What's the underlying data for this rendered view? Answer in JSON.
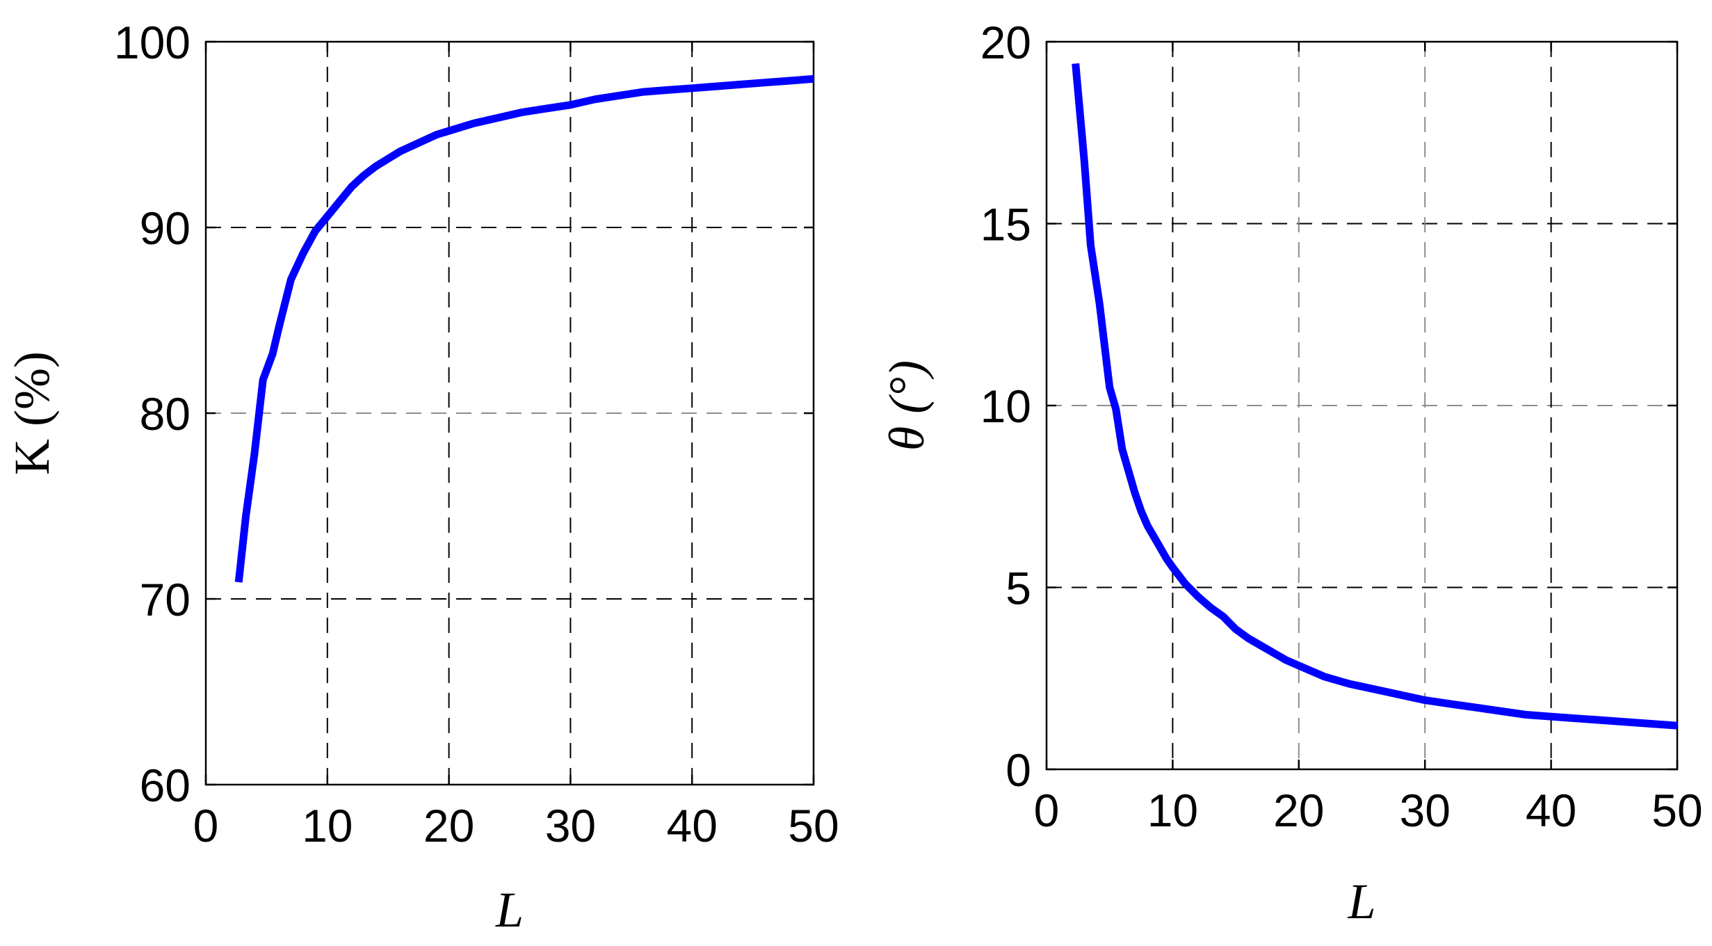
{
  "colors": {
    "series": "#0000ff",
    "axis": "#000000",
    "grid_dark": "#000000",
    "grid_light": "#8c8c8c",
    "background": "#ffffff"
  },
  "chart_data": [
    {
      "type": "line",
      "title": "",
      "xlabel": "L",
      "ylabel": "K (%)",
      "xlim": [
        0,
        50
      ],
      "ylim": [
        60,
        100
      ],
      "xticks": [
        0,
        10,
        20,
        30,
        40,
        50
      ],
      "yticks": [
        60,
        70,
        80,
        90,
        100
      ],
      "xtick_labels": [
        "0",
        "10",
        "20",
        "30",
        "40",
        "50"
      ],
      "ytick_labels": [
        "60",
        "70",
        "80",
        "90",
        "100"
      ],
      "grid": true,
      "series": [
        {
          "x": [
            2.7,
            3.3,
            4.0,
            4.7,
            5.5,
            6.0,
            7.0,
            8.0,
            9.0,
            10.0,
            11.0,
            12.0,
            13.0,
            14.0,
            15.0,
            16.0,
            17.0,
            18.0,
            19.0,
            20.0,
            22.0,
            24.0,
            26.0,
            28.0,
            30.0,
            32.0,
            34.0,
            36.0,
            38.0,
            40.0,
            42.0,
            44.0,
            46.0,
            48.0,
            50.0
          ],
          "values": [
            70.9,
            74.5,
            77.8,
            81.8,
            83.2,
            84.6,
            87.2,
            88.6,
            89.8,
            90.6,
            91.4,
            92.2,
            92.8,
            93.3,
            93.7,
            94.1,
            94.4,
            94.7,
            95.0,
            95.2,
            95.6,
            95.9,
            96.2,
            96.4,
            96.6,
            96.9,
            97.1,
            97.3,
            97.4,
            97.5,
            97.6,
            97.7,
            97.8,
            97.9,
            98.0
          ]
        }
      ]
    },
    {
      "type": "line",
      "title": "",
      "xlabel": "L",
      "ylabel": "θ (°)",
      "xlim": [
        0,
        50
      ],
      "ylim": [
        0,
        20
      ],
      "xticks": [
        0,
        10,
        20,
        30,
        40,
        50
      ],
      "yticks": [
        0,
        5,
        10,
        15,
        20
      ],
      "xtick_labels": [
        "0",
        "10",
        "20",
        "30",
        "40",
        "50"
      ],
      "ytick_labels": [
        "0",
        "5",
        "10",
        "15",
        "20"
      ],
      "grid": true,
      "series": [
        {
          "x": [
            2.3,
            3.0,
            3.5,
            4.2,
            5.0,
            5.5,
            6.0,
            6.5,
            7.0,
            7.5,
            8.0,
            8.5,
            9.0,
            9.5,
            10.0,
            11.0,
            12.0,
            13.0,
            14.0,
            15.0,
            16.0,
            17.0,
            18.0,
            19.0,
            20.0,
            22.0,
            24.0,
            26.0,
            28.0,
            30.0,
            32.0,
            34.0,
            36.0,
            38.0,
            40.0,
            42.0,
            44.0,
            46.0,
            48.0,
            50.0
          ],
          "values": [
            19.4,
            16.7,
            14.4,
            12.8,
            10.5,
            9.9,
            8.8,
            8.2,
            7.6,
            7.1,
            6.7,
            6.4,
            6.1,
            5.8,
            5.55,
            5.1,
            4.75,
            4.45,
            4.2,
            3.85,
            3.6,
            3.4,
            3.2,
            3.0,
            2.85,
            2.55,
            2.35,
            2.2,
            2.05,
            1.9,
            1.8,
            1.7,
            1.6,
            1.5,
            1.45,
            1.4,
            1.35,
            1.3,
            1.25,
            1.2
          ]
        }
      ]
    }
  ]
}
